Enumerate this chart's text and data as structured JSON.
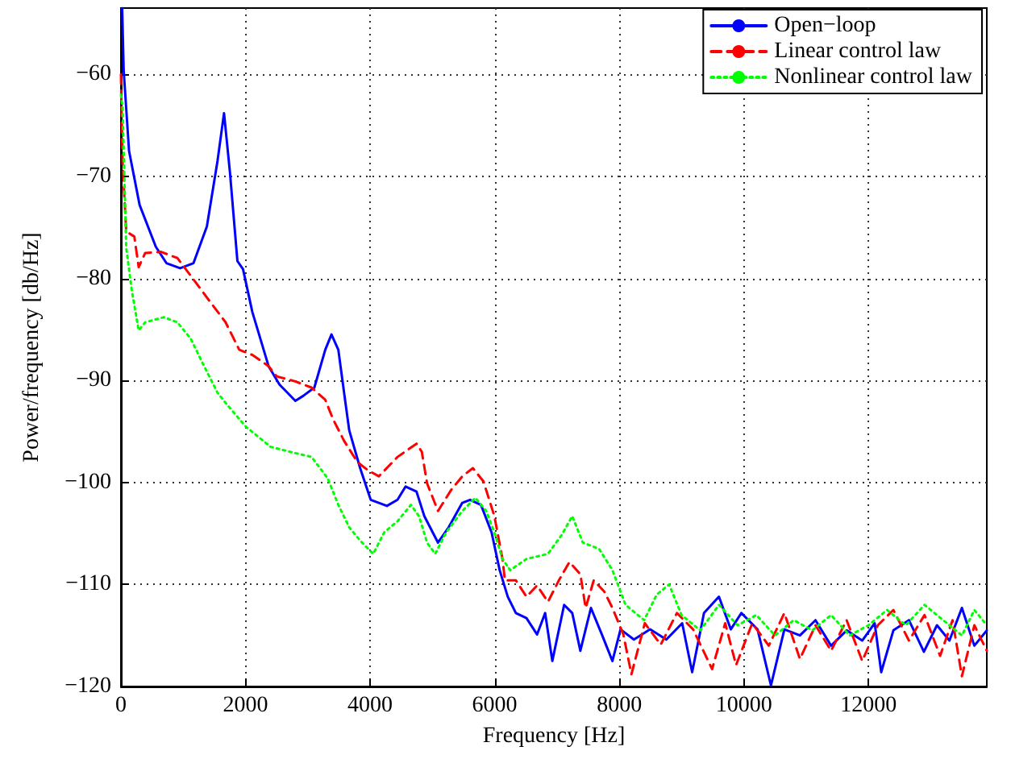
{
  "chart_data": {
    "type": "line",
    "xlabel": "Frequency [Hz]",
    "ylabel": "Power/frequency [db/Hz]",
    "xlim": [
      0,
      13900
    ],
    "xticks": [
      0,
      2000,
      4000,
      6000,
      8000,
      10000,
      12000
    ],
    "ylim": [
      -120,
      -53.5
    ],
    "yticks": [
      -120,
      -110,
      -100,
      -90,
      -80,
      -70,
      -60
    ],
    "grid": true,
    "legend": "top right",
    "marker": "none",
    "series": [
      {
        "name": "Open−loop",
        "color": "#0000ff",
        "line_style": "solid",
        "x": [
          20,
          44,
          130,
          300,
          560,
          730,
          950,
          1165,
          1380,
          1550,
          1655,
          1750,
          1870,
          1960,
          2110,
          2370,
          2545,
          2800,
          2930,
          3105,
          3280,
          3380,
          3490,
          3600,
          3665,
          3840,
          4010,
          4270,
          4440,
          4570,
          4745,
          4870,
          5090,
          5260,
          5480,
          5605,
          5780,
          5950,
          6080,
          6210,
          6340,
          6510,
          6680,
          6810,
          6925,
          7115,
          7245,
          7375,
          7545,
          7720,
          7890,
          8020,
          8235,
          8495,
          8755,
          9010,
          9170,
          9360,
          9600,
          9790,
          9960,
          10220,
          10435,
          10650,
          10900,
          11150,
          11400,
          11650,
          11900,
          12100,
          12205,
          12400,
          12650,
          12890,
          13100,
          13300,
          13500,
          13700,
          13900
        ],
        "values": [
          -53.5,
          -59.6,
          -67.5,
          -72.8,
          -76.9,
          -78.5,
          -79.0,
          -78.5,
          -74.9,
          -68.5,
          -63.8,
          -69.6,
          -78.3,
          -79.1,
          -83.3,
          -88.6,
          -90.4,
          -92.0,
          -91.5,
          -90.7,
          -87.0,
          -85.5,
          -87.0,
          -92.0,
          -94.9,
          -98.6,
          -101.7,
          -102.3,
          -101.7,
          -100.4,
          -100.9,
          -103.3,
          -105.9,
          -104.4,
          -102.0,
          -101.7,
          -102.2,
          -104.9,
          -108.6,
          -111.2,
          -112.8,
          -113.3,
          -114.9,
          -112.8,
          -117.5,
          -112.0,
          -112.8,
          -116.5,
          -112.3,
          -114.9,
          -117.5,
          -114.4,
          -115.4,
          -114.4,
          -115.4,
          -113.8,
          -118.6,
          -112.8,
          -111.2,
          -114.4,
          -112.8,
          -114.4,
          -119.9,
          -114.4,
          -115.0,
          -113.5,
          -116.0,
          -114.5,
          -115.5,
          -113.8,
          -118.6,
          -114.5,
          -113.5,
          -116.6,
          -114.0,
          -115.5,
          -112.3,
          -116.0,
          -114.5
        ]
      },
      {
        "name": "Linear control law",
        "color": "#ff0000",
        "line_style": "dashed",
        "x": [
          0,
          26,
          85,
          215,
          285,
          390,
          645,
          905,
          1165,
          1420,
          1680,
          1900,
          2110,
          2370,
          2500,
          2800,
          3060,
          3280,
          3405,
          3580,
          3795,
          3965,
          4140,
          4440,
          4745,
          4830,
          4915,
          5090,
          5305,
          5480,
          5650,
          5820,
          5995,
          6125,
          6165,
          6340,
          6510,
          6680,
          6855,
          7030,
          7200,
          7375,
          7460,
          7590,
          7760,
          7890,
          8065,
          8195,
          8410,
          8665,
          8925,
          9185,
          9490,
          9700,
          9875,
          10135,
          10400,
          10650,
          10900,
          11150,
          11400,
          11650,
          11900,
          12150,
          12400,
          12650,
          12900,
          13150,
          13350,
          13500,
          13700,
          13900
        ],
        "values": [
          -60.0,
          -68.6,
          -75.4,
          -75.9,
          -78.9,
          -77.5,
          -77.4,
          -78.0,
          -80.1,
          -82.2,
          -84.3,
          -87.0,
          -87.5,
          -88.6,
          -89.6,
          -90.1,
          -90.7,
          -91.9,
          -93.8,
          -95.9,
          -98.0,
          -98.8,
          -99.4,
          -97.5,
          -96.2,
          -97.0,
          -100.1,
          -102.8,
          -100.7,
          -99.4,
          -98.6,
          -99.9,
          -103.3,
          -107.5,
          -109.6,
          -109.6,
          -111.2,
          -110.1,
          -111.7,
          -109.6,
          -107.8,
          -109.0,
          -112.3,
          -109.6,
          -110.7,
          -112.3,
          -114.9,
          -118.8,
          -113.8,
          -115.9,
          -112.8,
          -114.4,
          -118.3,
          -113.8,
          -117.9,
          -113.8,
          -116.0,
          -112.8,
          -117.3,
          -114.0,
          -116.5,
          -113.5,
          -117.5,
          -114.0,
          -112.5,
          -115.5,
          -113.0,
          -117.0,
          -113.5,
          -119.0,
          -114.0,
          -116.5
        ]
      },
      {
        "name": "Nonlinear control law",
        "color": "#00ff00",
        "line_style": "dotted",
        "x": [
          0,
          26,
          85,
          175,
          285,
          390,
          690,
          905,
          1120,
          1335,
          1550,
          1680,
          2000,
          2400,
          2715,
          3060,
          3320,
          3490,
          3665,
          3840,
          4050,
          4225,
          4440,
          4655,
          4785,
          4915,
          5045,
          5220,
          5480,
          5690,
          5865,
          5995,
          6125,
          6250,
          6510,
          6855,
          7070,
          7245,
          7415,
          7675,
          7890,
          8020,
          8100,
          8400,
          8600,
          8800,
          9000,
          9300,
          9600,
          9900,
          10200,
          10500,
          10800,
          11100,
          11400,
          11700,
          12000,
          12300,
          12600,
          12900,
          13200,
          13500,
          13700,
          13900
        ],
        "values": [
          -62.0,
          -63.3,
          -77.0,
          -81.2,
          -85.1,
          -84.3,
          -83.8,
          -84.3,
          -85.9,
          -88.6,
          -91.2,
          -92.2,
          -94.5,
          -96.5,
          -97.0,
          -97.5,
          -99.6,
          -102.2,
          -104.4,
          -105.7,
          -107.0,
          -104.9,
          -103.8,
          -102.2,
          -103.3,
          -105.9,
          -107.0,
          -104.9,
          -102.8,
          -101.5,
          -102.8,
          -104.9,
          -107.5,
          -108.6,
          -107.5,
          -107.0,
          -105.2,
          -103.3,
          -105.9,
          -106.5,
          -108.6,
          -110.7,
          -112.0,
          -113.5,
          -111.0,
          -110.0,
          -113.0,
          -114.5,
          -112.0,
          -114.0,
          -113.0,
          -115.0,
          -113.5,
          -114.5,
          -113.0,
          -115.0,
          -114.0,
          -112.5,
          -114.0,
          -112.0,
          -113.5,
          -115.0,
          -112.5,
          -114.0
        ]
      }
    ]
  }
}
